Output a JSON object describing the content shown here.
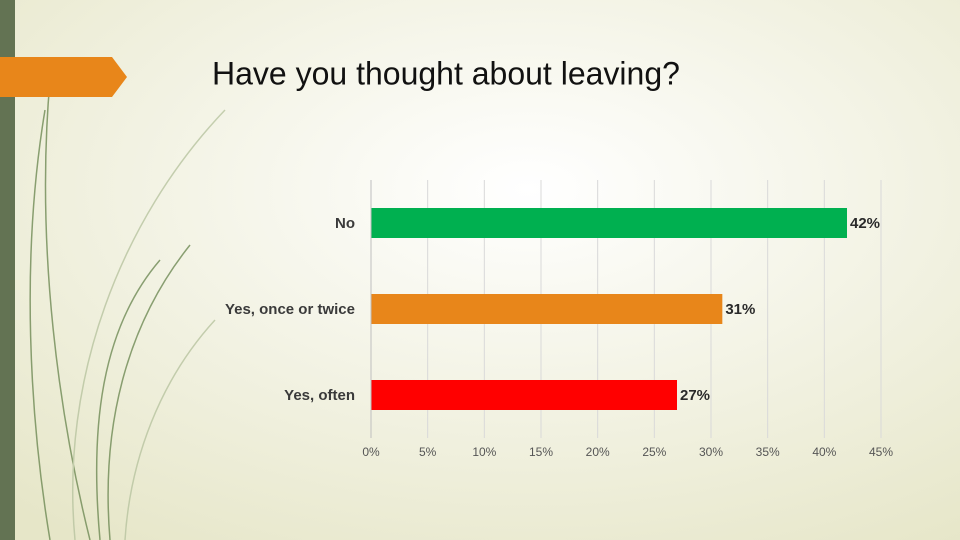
{
  "chart_data": {
    "type": "hbar",
    "title": "Have you thought about leaving?",
    "categories": [
      "No",
      "Yes, once or twice",
      "Yes, often"
    ],
    "values": [
      42,
      31,
      27
    ],
    "value_labels": [
      "42%",
      "31%",
      "27%"
    ],
    "colors": [
      "#00b050",
      "#e8861a",
      "#ff0000"
    ],
    "xlim": [
      0,
      45
    ],
    "xticks": [
      {
        "value": 0,
        "label": "0%"
      },
      {
        "value": 5,
        "label": "5%"
      },
      {
        "value": 10,
        "label": "10%"
      },
      {
        "value": 15,
        "label": "15%"
      },
      {
        "value": 20,
        "label": "20%"
      },
      {
        "value": 25,
        "label": "25%"
      },
      {
        "value": 30,
        "label": "30%"
      },
      {
        "value": 35,
        "label": "35%"
      },
      {
        "value": 40,
        "label": "40%"
      },
      {
        "value": 45,
        "label": "45%"
      }
    ],
    "grid": true
  }
}
